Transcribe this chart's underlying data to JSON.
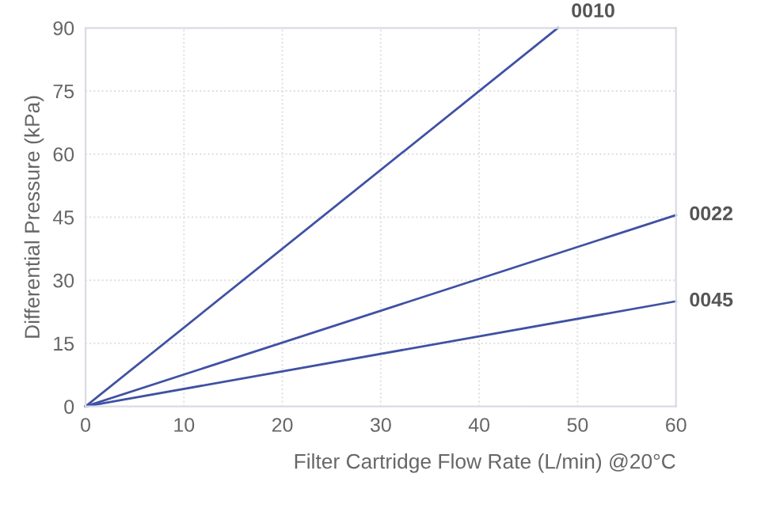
{
  "chart_data": {
    "type": "line",
    "xlabel": "Filter Cartridge Flow Rate (L/min) @20°C",
    "ylabel": "Differential Pressure (kPa)",
    "xlim": [
      0,
      60
    ],
    "ylim": [
      0,
      90
    ],
    "xticks": [
      0,
      10,
      20,
      30,
      40,
      50,
      60
    ],
    "yticks": [
      0,
      15,
      30,
      45,
      60,
      75,
      90
    ],
    "grid": true,
    "marker": "none",
    "line_style": "solid",
    "series": [
      {
        "name": "0010",
        "color": "#3f51a3",
        "x": [
          0,
          48
        ],
        "values": [
          0,
          90
        ]
      },
      {
        "name": "0022",
        "color": "#3f51a3",
        "x": [
          0,
          60
        ],
        "values": [
          0,
          45.5
        ]
      },
      {
        "name": "0045",
        "color": "#3f51a3",
        "x": [
          0,
          60
        ],
        "values": [
          0,
          25
        ]
      }
    ]
  }
}
